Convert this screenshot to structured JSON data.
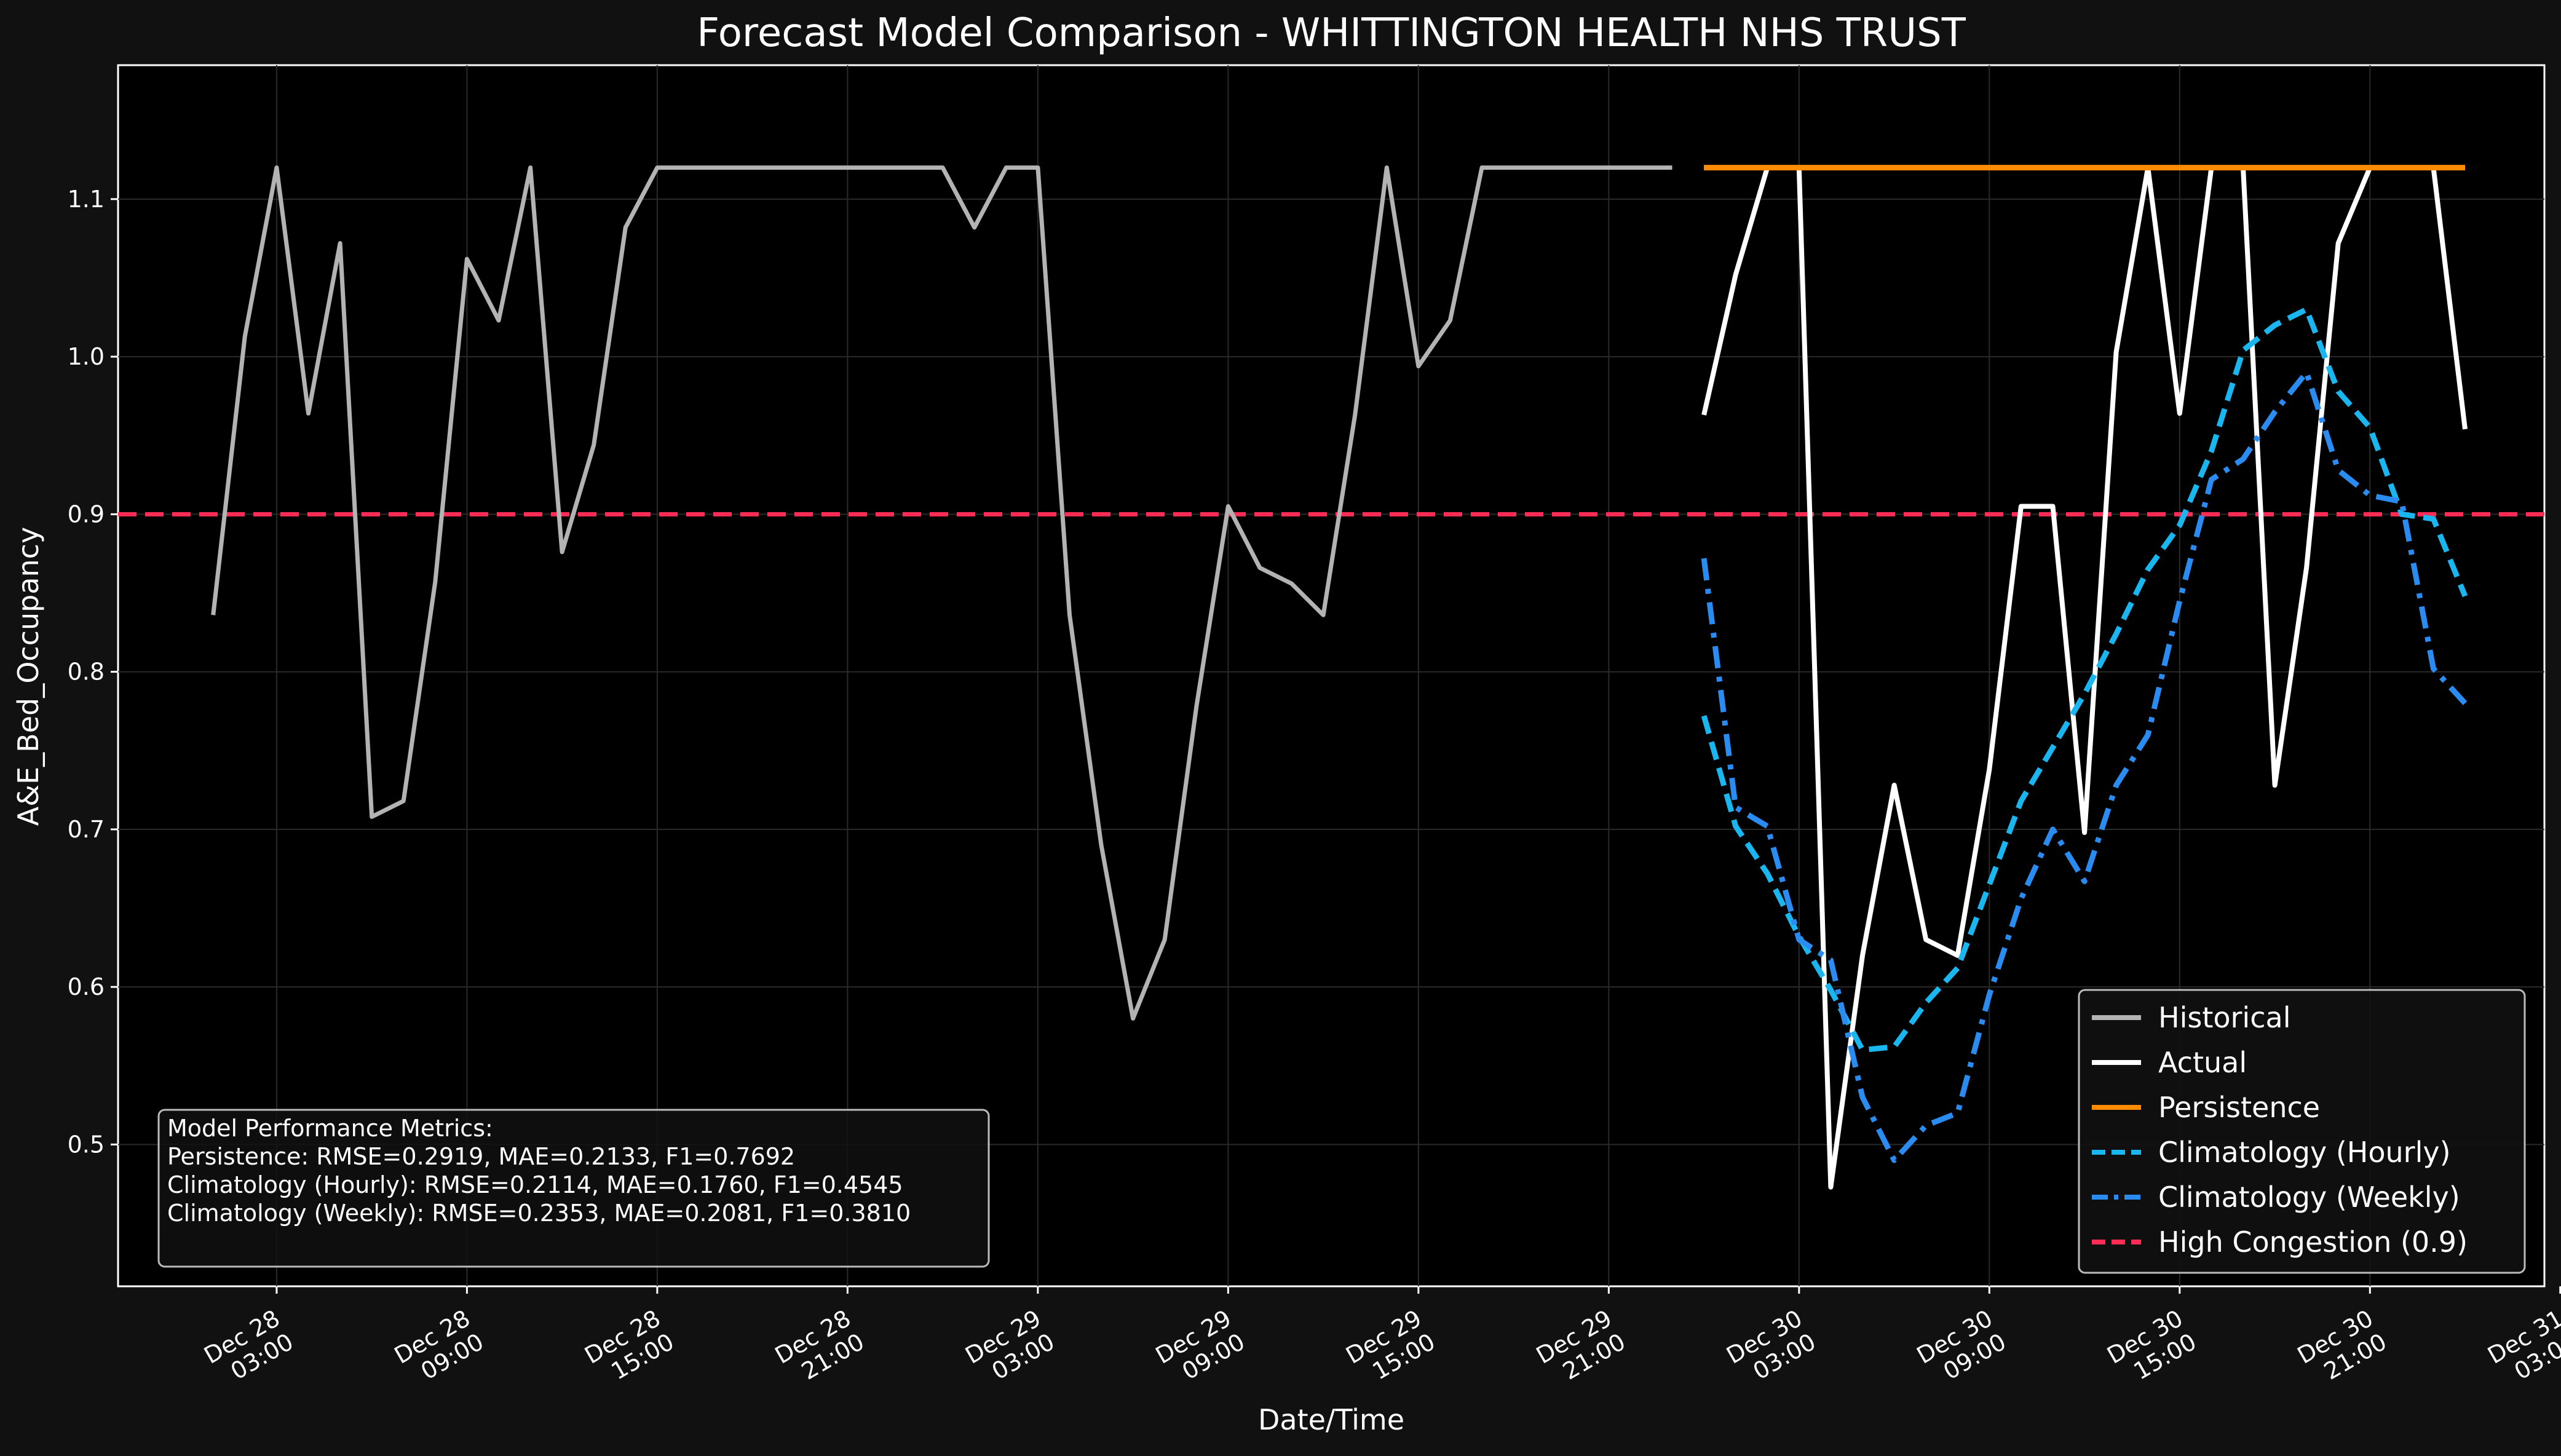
{
  "chart_data": {
    "type": "line",
    "title": "Forecast Model Comparison - WHITTINGTON HEALTH NHS TRUST",
    "xlabel": "Date/Time",
    "ylabel": "A&E_Bed_Occupancy",
    "x_unit": "hours since Dec 28 00:00",
    "xlim": [
      -2,
      74.5
    ],
    "ylim": [
      0.41,
      1.185
    ],
    "grid": true,
    "legend_position": "lower-right",
    "x_ticks": [
      {
        "x": 3,
        "date": "Dec 28",
        "time": "03:00"
      },
      {
        "x": 9,
        "date": "Dec 28",
        "time": "09:00"
      },
      {
        "x": 15,
        "date": "Dec 28",
        "time": "15:00"
      },
      {
        "x": 21,
        "date": "Dec 28",
        "time": "21:00"
      },
      {
        "x": 27,
        "date": "Dec 29",
        "time": "03:00"
      },
      {
        "x": 33,
        "date": "Dec 29",
        "time": "09:00"
      },
      {
        "x": 39,
        "date": "Dec 29",
        "time": "15:00"
      },
      {
        "x": 45,
        "date": "Dec 29",
        "time": "21:00"
      },
      {
        "x": 51,
        "date": "Dec 30",
        "time": "03:00"
      },
      {
        "x": 57,
        "date": "Dec 30",
        "time": "09:00"
      },
      {
        "x": 63,
        "date": "Dec 30",
        "time": "15:00"
      },
      {
        "x": 69,
        "date": "Dec 30",
        "time": "21:00"
      },
      {
        "x": 75,
        "date": "Dec 31",
        "time": "03:00"
      }
    ],
    "y_ticks": [
      "0.5",
      "0.6",
      "0.7",
      "0.8",
      "0.9",
      "1.0",
      "1.1"
    ],
    "threshold": {
      "name": "High Congestion (0.9)",
      "value": 0.9,
      "color": "#ff2d55"
    },
    "series": [
      {
        "name": "Historical",
        "color": "#b3b3b3",
        "style": "solid",
        "width": 7,
        "x": [
          1,
          2,
          3,
          4,
          5,
          6,
          7,
          8,
          9,
          10,
          11,
          12,
          13,
          14,
          15,
          16,
          17,
          18,
          19,
          20,
          21,
          22,
          23,
          24,
          25,
          26,
          27,
          28,
          29,
          30,
          31,
          32,
          33,
          34,
          35,
          36,
          37,
          38,
          39,
          40,
          41,
          42,
          43,
          44,
          45,
          46,
          47
        ],
        "y": [
          0.836,
          1.013,
          1.12,
          0.964,
          1.072,
          0.708,
          0.718,
          0.857,
          1.062,
          1.023,
          1.12,
          0.876,
          0.944,
          1.082,
          1.12,
          1.12,
          1.12,
          1.12,
          1.12,
          1.12,
          1.12,
          1.12,
          1.12,
          1.12,
          1.082,
          1.12,
          1.12,
          0.836,
          0.69,
          0.58,
          0.63,
          0.778,
          0.905,
          0.866,
          0.856,
          0.836,
          0.963,
          1.12,
          0.994,
          1.023,
          1.12,
          1.12,
          1.12,
          1.12,
          1.12,
          1.12,
          1.12
        ]
      },
      {
        "name": "Actual",
        "color": "#ffffff",
        "style": "solid",
        "width": 8,
        "x": [
          48,
          49,
          50,
          51,
          52,
          53,
          54,
          55,
          56,
          57,
          58,
          59,
          60,
          61,
          62,
          63,
          64,
          65,
          66,
          67,
          68,
          69,
          70,
          71,
          72
        ],
        "y": [
          0.963,
          1.052,
          1.12,
          1.12,
          0.473,
          0.62,
          0.728,
          0.63,
          0.62,
          0.738,
          0.905,
          0.905,
          0.698,
          1.003,
          1.12,
          0.964,
          1.12,
          1.12,
          0.728,
          0.866,
          1.072,
          1.12,
          1.12,
          1.12,
          0.954
        ]
      },
      {
        "name": "Persistence",
        "color": "#ff8c00",
        "style": "solid",
        "width": 9,
        "x": [
          48,
          72
        ],
        "y": [
          1.12,
          1.12
        ]
      },
      {
        "name": "Climatology (Hourly)",
        "color": "#1ab6f0",
        "style": "dashed",
        "width": 9,
        "x": [
          48,
          49,
          50,
          51,
          52,
          53,
          54,
          55,
          56,
          57,
          58,
          59,
          60,
          61,
          62,
          63,
          64,
          65,
          66,
          67,
          68,
          69,
          70,
          71,
          72
        ],
        "y": [
          0.772,
          0.702,
          0.672,
          0.632,
          0.598,
          0.56,
          0.562,
          0.59,
          0.612,
          0.665,
          0.718,
          0.752,
          0.786,
          0.824,
          0.865,
          0.893,
          0.94,
          1.004,
          1.02,
          1.03,
          0.978,
          0.955,
          0.9,
          0.897,
          0.848
        ]
      },
      {
        "name": "Climatology (Weekly)",
        "color": "#2a8cf0",
        "style": "dashdot",
        "width": 9,
        "x": [
          48,
          49,
          50,
          51,
          52,
          53,
          54,
          55,
          56,
          57,
          58,
          59,
          60,
          61,
          62,
          63,
          64,
          65,
          66,
          67,
          68,
          69,
          70,
          71,
          72
        ],
        "y": [
          0.872,
          0.714,
          0.702,
          0.63,
          0.617,
          0.53,
          0.49,
          0.512,
          0.52,
          0.595,
          0.656,
          0.7,
          0.667,
          0.728,
          0.76,
          0.845,
          0.922,
          0.935,
          0.965,
          0.99,
          0.928,
          0.912,
          0.908,
          0.802,
          0.78
        ]
      }
    ],
    "metrics_box": {
      "title": "Model Performance Metrics:",
      "lines": [
        "Persistence: RMSE=0.2919, MAE=0.2133, F1=0.7692",
        "Climatology (Hourly): RMSE=0.2114, MAE=0.1760, F1=0.4545",
        "Climatology (Weekly): RMSE=0.2353, MAE=0.2081, F1=0.3810"
      ]
    },
    "legend": [
      {
        "label": "Historical",
        "color": "#b3b3b3",
        "style": "solid"
      },
      {
        "label": "Actual",
        "color": "#ffffff",
        "style": "solid"
      },
      {
        "label": "Persistence",
        "color": "#ff8c00",
        "style": "solid"
      },
      {
        "label": "Climatology (Hourly)",
        "color": "#1ab6f0",
        "style": "dashed"
      },
      {
        "label": "Climatology (Weekly)",
        "color": "#2a8cf0",
        "style": "dashdot"
      },
      {
        "label": "High Congestion (0.9)",
        "color": "#ff2d55",
        "style": "dashed"
      }
    ],
    "colors": {
      "figure_bg": "#111111",
      "axes_bg": "#000000",
      "grid": "#2a2a2a",
      "text": "#ffffff"
    }
  }
}
